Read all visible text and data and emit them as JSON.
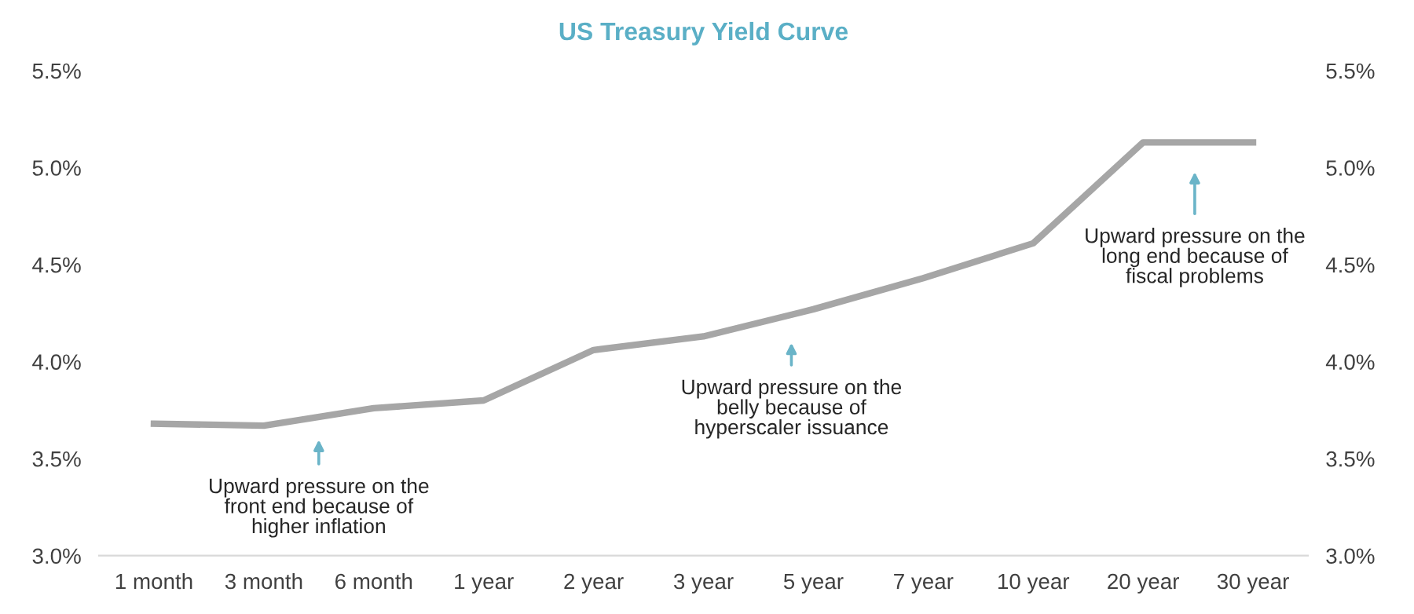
{
  "chart_data": {
    "type": "line",
    "title": "US Treasury Yield Curve",
    "categories": [
      "1 month",
      "3 month",
      "6 month",
      "1 year",
      "2 year",
      "3 year",
      "5 year",
      "7 year",
      "10 year",
      "20 year",
      "30 year"
    ],
    "series": [
      {
        "color": "#a6a6a6",
        "values": [
          3.68,
          3.67,
          3.76,
          3.8,
          4.06,
          4.13,
          4.27,
          4.43,
          4.61,
          5.13,
          5.13
        ]
      }
    ],
    "ylim": [
      3.0,
      5.5
    ],
    "yticks": [
      {
        "value": 3.0,
        "label": "3.0%"
      },
      {
        "value": 3.5,
        "label": "3.5%"
      },
      {
        "value": 4.0,
        "label": "4.0%"
      },
      {
        "value": 4.5,
        "label": "4.5%"
      },
      {
        "value": 5.0,
        "label": "5.0%"
      },
      {
        "value": 5.5,
        "label": "5.5%"
      }
    ],
    "y2lim": [
      3.0,
      5.5
    ],
    "y2ticks": [
      {
        "value": 3.0,
        "label": "3.0%"
      },
      {
        "value": 3.5,
        "label": "3.5%"
      },
      {
        "value": 4.0,
        "label": "4.0%"
      },
      {
        "value": 4.5,
        "label": "4.5%"
      },
      {
        "value": 5.0,
        "label": "5.0%"
      },
      {
        "value": 5.5,
        "label": "5.5%"
      }
    ],
    "annotations": [
      "Upward pressure on the\nfront end because of\nhigher inflation",
      "Upward pressure on the\nbelly because of\nhyperscaler issuance",
      "Upward pressure on the\nlong end because of\nfiscal problems"
    ],
    "grid": false,
    "legend": false,
    "marker": "none",
    "line_style": "solid"
  }
}
